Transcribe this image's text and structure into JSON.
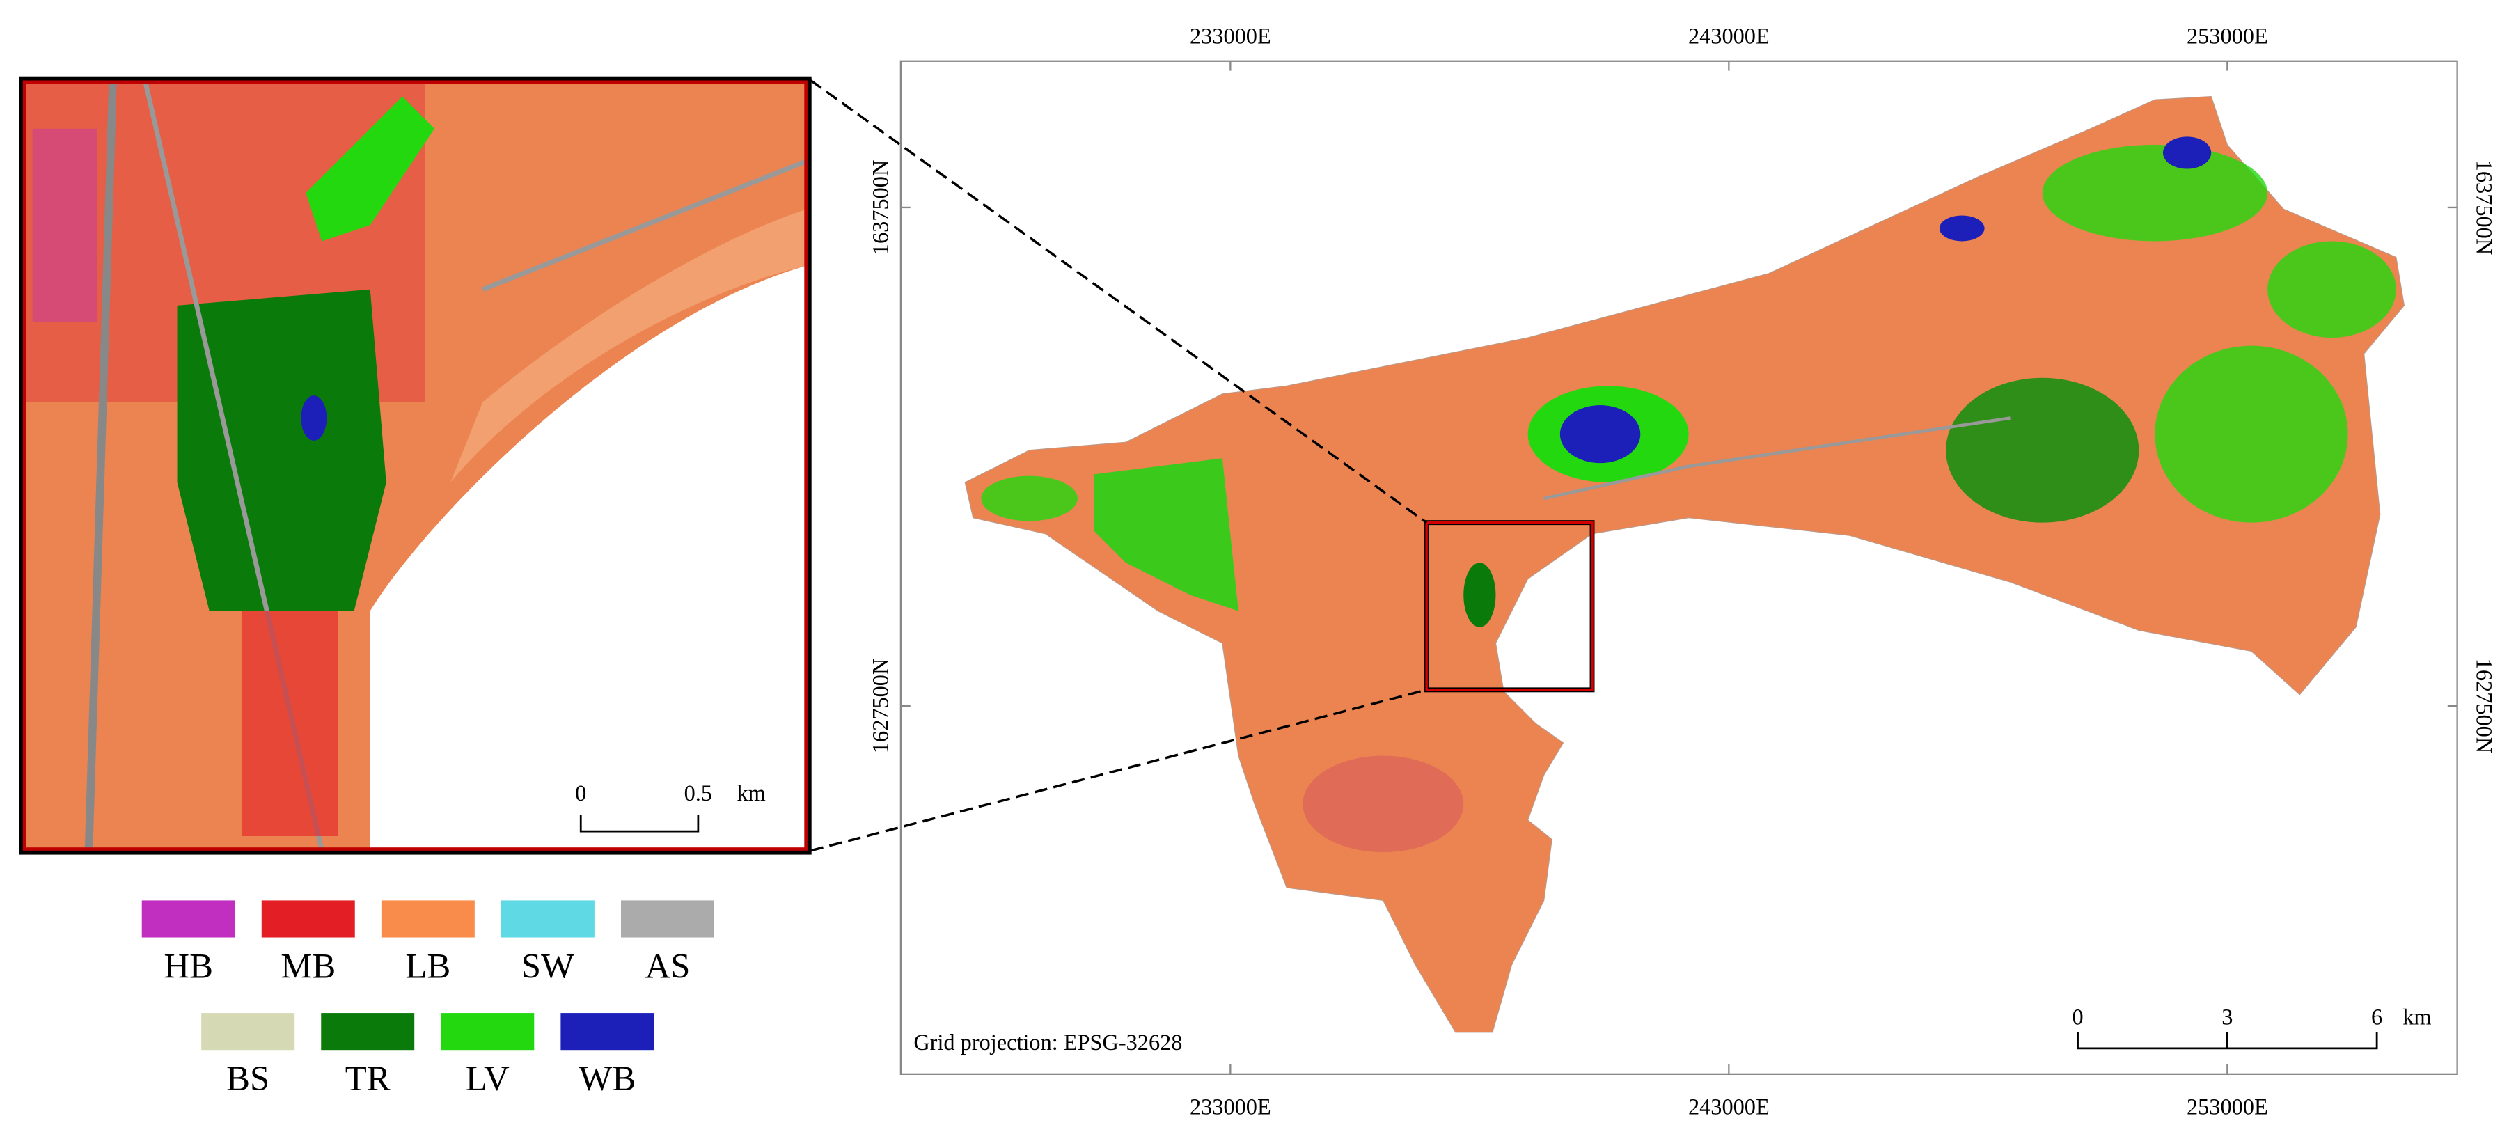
{
  "map": {
    "x_labels": [
      "233000E",
      "243000E",
      "253000E"
    ],
    "y_labels": [
      "1637500N",
      "1627500N"
    ],
    "projection": "Grid projection: EPSG-32628",
    "scale_bar": {
      "ticks": [
        "0",
        "3",
        "6"
      ],
      "unit": "km"
    }
  },
  "inset": {
    "scale_bar": {
      "ticks": [
        "0",
        "0.5"
      ],
      "unit": "km"
    }
  },
  "legend": [
    {
      "code": "HB",
      "color": "#c02fc0"
    },
    {
      "code": "MB",
      "color": "#e31e24"
    },
    {
      "code": "LB",
      "color": "#f98c4a"
    },
    {
      "code": "SW",
      "color": "#5fd9e3"
    },
    {
      "code": "AS",
      "color": "#ababab"
    },
    {
      "code": "BS",
      "color": "#d6dab4"
    },
    {
      "code": "TR",
      "color": "#0a7a0a"
    },
    {
      "code": "LV",
      "color": "#23d80f"
    },
    {
      "code": "WB",
      "color": "#1c20b8"
    }
  ]
}
